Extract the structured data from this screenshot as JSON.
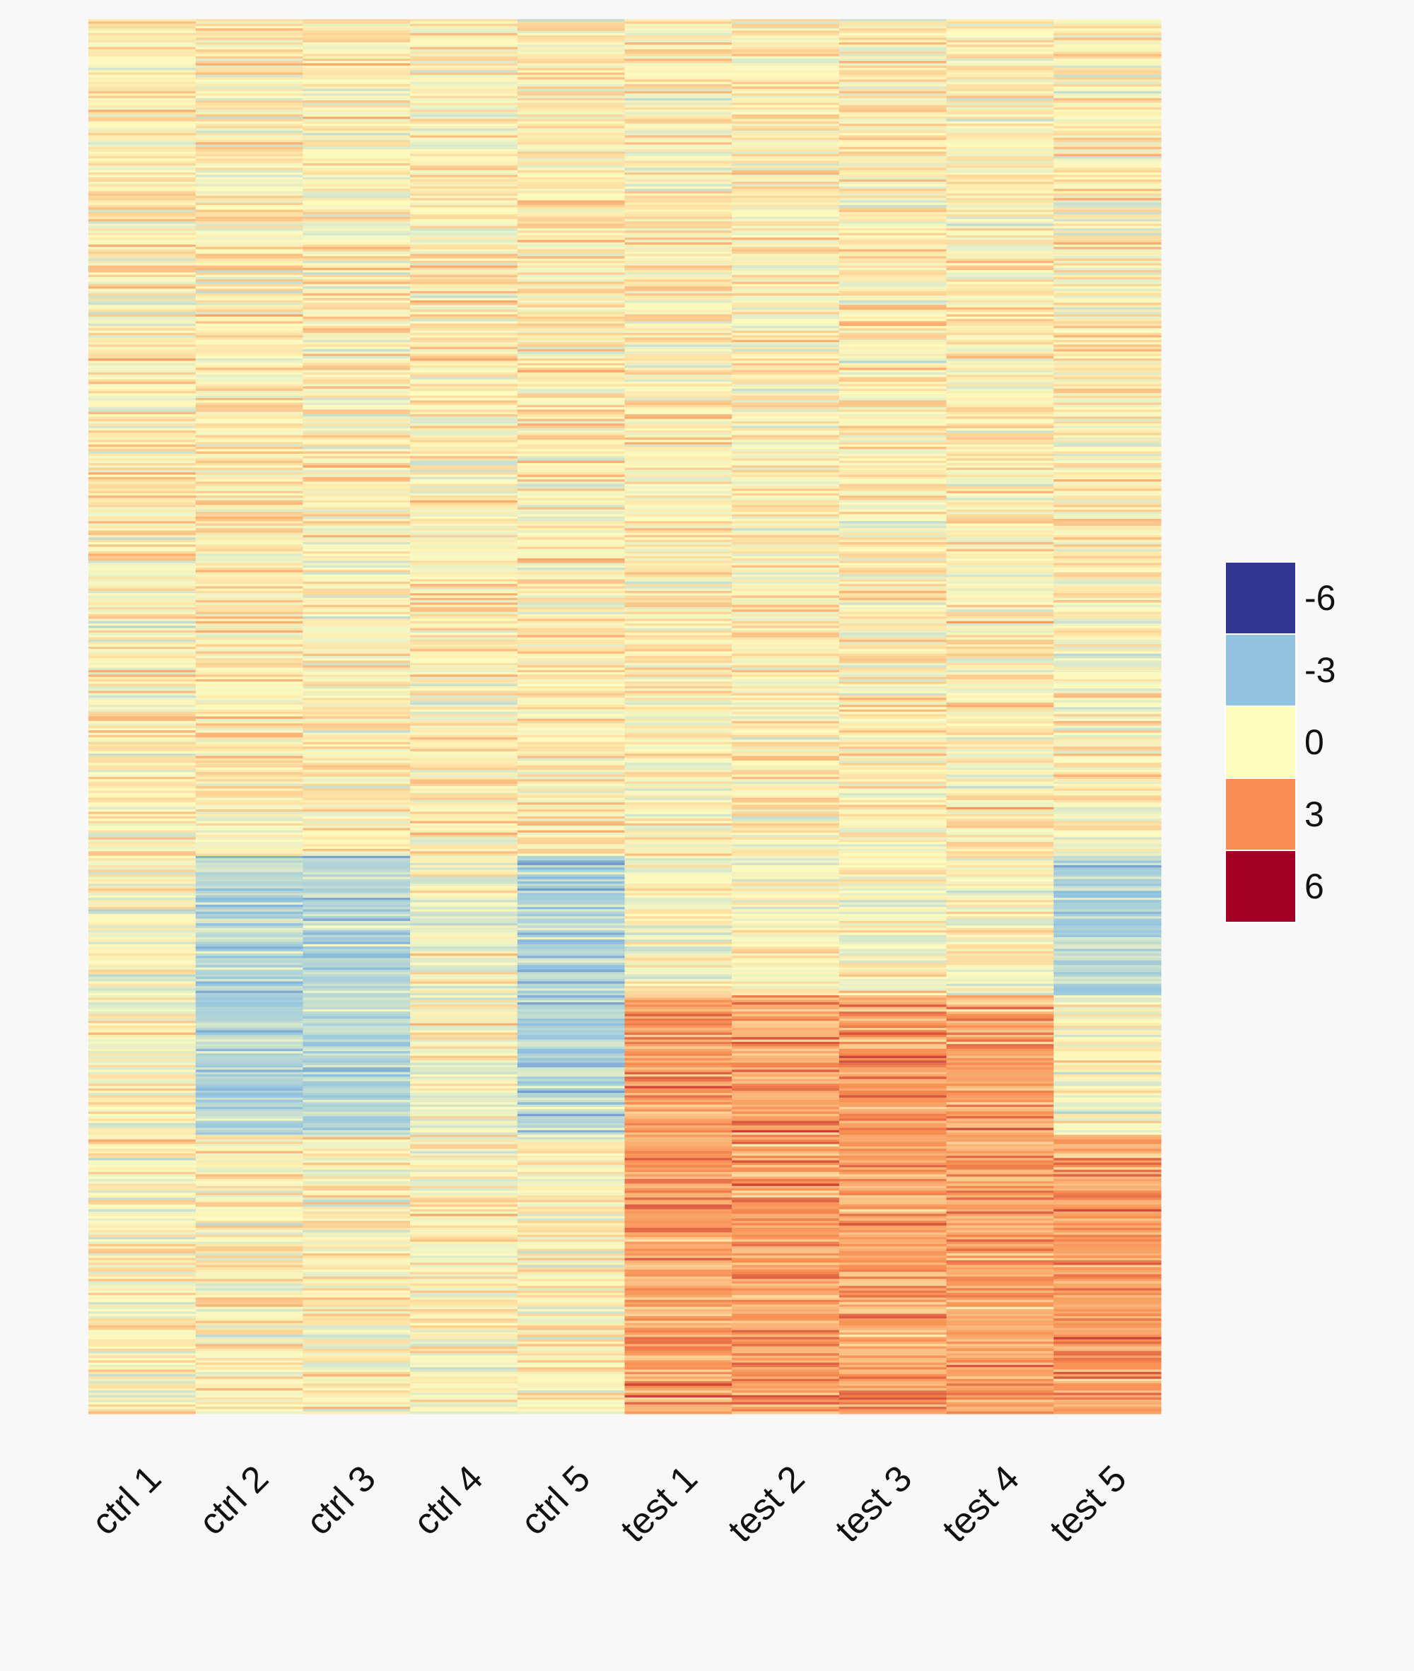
{
  "chart_data": {
    "type": "heatmap",
    "title": "",
    "xlabel": "",
    "ylabel": "",
    "columns": [
      "ctrl 1",
      "ctrl 2",
      "ctrl 3",
      "ctrl 4",
      "ctrl 5",
      "test 1",
      "test 2",
      "test 3",
      "test 4",
      "test 5"
    ],
    "row_count": 600,
    "row_labels_shown": false,
    "color_scale": {
      "breaks": [
        -6,
        -3,
        0,
        3,
        6
      ],
      "colors": [
        "#313695",
        "#91c3e0",
        "#fefbbf",
        "#f88e52",
        "#a50026"
      ]
    },
    "legend": {
      "position": "right",
      "labels": [
        "-6",
        "-3",
        "0",
        "3",
        "6"
      ],
      "colors": [
        "#313695",
        "#91c3e0",
        "#fefbbf",
        "#f88e52",
        "#a50026"
      ]
    },
    "blocks": [
      {
        "columns": [
          "ctrl 1",
          "ctrl 2",
          "ctrl 3",
          "ctrl 4",
          "ctrl 5",
          "test 1",
          "test 2",
          "test 3",
          "test 4",
          "test 5"
        ],
        "row_fraction": [
          0.0,
          0.6
        ],
        "mean_value": 0.3
      },
      {
        "columns": [
          "ctrl 2",
          "ctrl 3",
          "ctrl 5"
        ],
        "row_fraction": [
          0.6,
          0.8
        ],
        "mean_value": -2.0
      },
      {
        "columns": [
          "test 5"
        ],
        "row_fraction": [
          0.6,
          0.7
        ],
        "mean_value": -2.0
      },
      {
        "columns": [
          "test 1",
          "test 2",
          "test 3",
          "test 4"
        ],
        "row_fraction": [
          0.7,
          1.0
        ],
        "mean_value": 2.5
      },
      {
        "columns": [
          "test 5"
        ],
        "row_fraction": [
          0.8,
          1.0
        ],
        "mean_value": 2.5
      },
      {
        "columns": [
          "ctrl 1",
          "ctrl 2",
          "ctrl 3",
          "ctrl 4",
          "ctrl 5"
        ],
        "row_fraction": [
          0.8,
          1.0
        ],
        "mean_value": 0.2
      }
    ]
  }
}
